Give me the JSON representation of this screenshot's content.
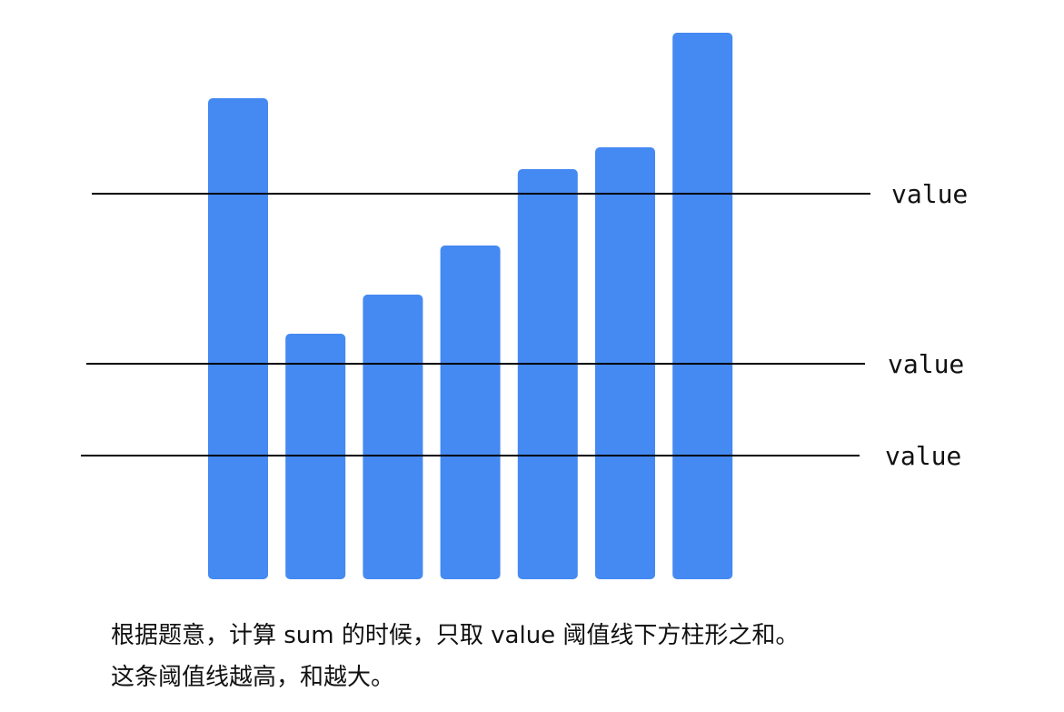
{
  "colors": {
    "bar": "#4589F2",
    "line": "#000000",
    "text": "#111111",
    "background": "#ffffff"
  },
  "diagram": {
    "bars": [
      {
        "relative_height": 0.88
      },
      {
        "relative_height": 0.45
      },
      {
        "relative_height": 0.52
      },
      {
        "relative_height": 0.61
      },
      {
        "relative_height": 0.75
      },
      {
        "relative_height": 0.79
      },
      {
        "relative_height": 1.0
      }
    ],
    "threshold_lines": [
      {
        "label": "value"
      },
      {
        "label": "value"
      },
      {
        "label": "value"
      }
    ]
  },
  "caption": {
    "line1": "根据题意，计算 sum 的时候，只取 value 阈值线下方柱形之和。",
    "line2": "这条阈值线越高，和越大。"
  }
}
